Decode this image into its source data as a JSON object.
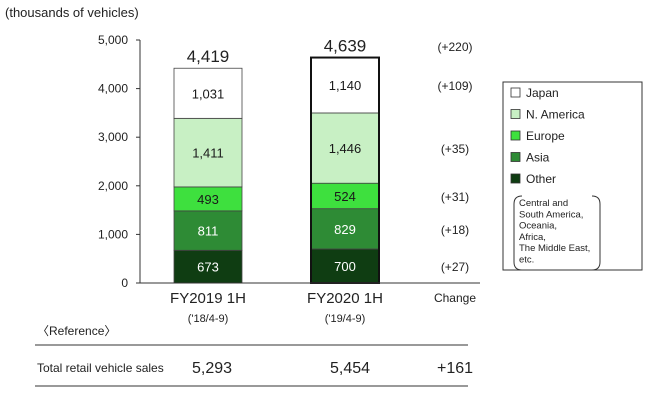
{
  "chart_data": {
    "type": "bar",
    "stacked": true,
    "unit_label": "(thousands of vehicles)",
    "ylim": [
      0,
      5000
    ],
    "yticks": [
      "0",
      "1,000",
      "2,000",
      "3,000",
      "4,000",
      "5,000"
    ],
    "categories": [
      "FY2019 1H",
      "FY2020 1H"
    ],
    "sublabels": [
      "('18/4-9)",
      "('19/4-9)"
    ],
    "totals": [
      "4,419",
      "4,639"
    ],
    "series": [
      {
        "name": "Other",
        "color": "#0f3d12",
        "values": [
          673,
          700
        ],
        "labels": [
          "673",
          "700"
        ],
        "change": "(+27)",
        "text_color": "#ffffff"
      },
      {
        "name": "Asia",
        "color": "#2e8b35",
        "values": [
          811,
          829
        ],
        "labels": [
          "811",
          "829"
        ],
        "change": "(+18)",
        "text_color": "#ffffff"
      },
      {
        "name": "Europe",
        "color": "#3ee03e",
        "values": [
          493,
          524
        ],
        "labels": [
          "493",
          "524"
        ],
        "change": "(+31)",
        "text_color": "#1a1a1a"
      },
      {
        "name": "N. America",
        "color": "#c8f0c4",
        "values": [
          1411,
          1446
        ],
        "labels": [
          "1,411",
          "1,446"
        ],
        "change": "(+35)",
        "text_color": "#1a1a1a"
      },
      {
        "name": "Japan",
        "color": "#ffffff",
        "values": [
          1031,
          1140
        ],
        "labels": [
          "1,031",
          "1,140"
        ],
        "change": "(+109)",
        "text_color": "#1a1a1a"
      }
    ],
    "change_header": "Change",
    "total_change": "(+220)",
    "legend_note": "Central and South America, Oceania, Africa, The Middle East, etc.",
    "legend_note_lines": [
      "Central and",
      "South America,",
      "Oceania,",
      "Africa,",
      "The Middle East,",
      "etc."
    ]
  },
  "reference": {
    "title": "〈Reference〉",
    "row_label": "Total retail vehicle sales",
    "values": [
      "5,293",
      "5,454"
    ],
    "change": "+161"
  }
}
